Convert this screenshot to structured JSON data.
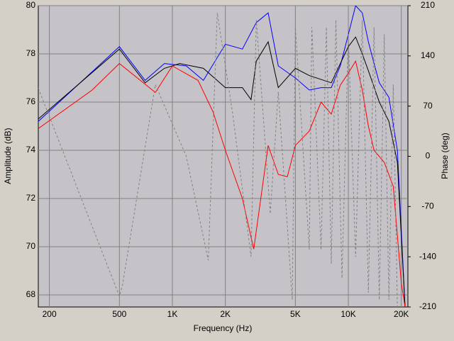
{
  "chart_data": {
    "type": "line",
    "x_label": "Frequency (Hz)",
    "y_label": "Amplitude (dB)",
    "y2_label": "Phase (deg)",
    "xscale": "log",
    "xlim": [
      173,
      21800
    ],
    "ylim": [
      67.5,
      80
    ],
    "y2lim": [
      -210,
      210
    ],
    "xticks": [
      200,
      500,
      {
        "value": 1000,
        "label": "1K"
      },
      {
        "value": 2000,
        "label": "2K"
      },
      {
        "value": 5000,
        "label": "5K"
      },
      {
        "value": 10000,
        "label": "10K"
      },
      {
        "value": 20000,
        "label": "20K"
      }
    ],
    "yticks": [
      68,
      70,
      72,
      74,
      76,
      78,
      80
    ],
    "y2ticks": [
      -210,
      -140,
      -70,
      0,
      70,
      140,
      210
    ],
    "grid": true,
    "series": [
      {
        "color": "#0000ff",
        "x": [
          173,
          500,
          700,
          900,
          1200,
          1500,
          2000,
          2500,
          3000,
          3500,
          4000,
          5000,
          6000,
          7000,
          8000,
          9000,
          10000,
          11000,
          12000,
          13000,
          14000,
          15000,
          17000,
          19000,
          21000
        ],
        "values": [
          75.2,
          78.3,
          76.9,
          77.6,
          77.5,
          76.9,
          78.4,
          78.2,
          79.3,
          79.7,
          77.5,
          77.0,
          76.5,
          76.6,
          76.6,
          77.5,
          78.8,
          80.0,
          79.7,
          78.5,
          77.6,
          76.8,
          76.2,
          74.0,
          67.5
        ]
      },
      {
        "color": "#000000",
        "x": [
          173,
          500,
          700,
          900,
          1100,
          1500,
          2000,
          2500,
          2800,
          3000,
          3500,
          4000,
          5000,
          6000,
          8000,
          10000,
          11000,
          12000,
          13000,
          15000,
          17000,
          19000,
          21000
        ],
        "values": [
          75.3,
          78.2,
          76.8,
          77.4,
          77.6,
          77.4,
          76.6,
          76.6,
          76.1,
          77.7,
          78.5,
          76.6,
          77.4,
          77.1,
          76.8,
          78.3,
          78.7,
          78.0,
          77.3,
          76.0,
          75.2,
          73.5,
          67.5
        ]
      },
      {
        "color": "#ff0000",
        "x": [
          173,
          350,
          500,
          800,
          1000,
          1400,
          1700,
          2000,
          2500,
          2900,
          3500,
          4000,
          4500,
          5000,
          6000,
          7000,
          8000,
          9000,
          10000,
          11000,
          12000,
          13000,
          14000,
          16000,
          18000,
          20000,
          21000
        ],
        "values": [
          74.9,
          76.5,
          77.6,
          76.4,
          77.5,
          76.9,
          75.6,
          74.0,
          72.0,
          69.9,
          74.2,
          73.0,
          72.9,
          74.2,
          74.8,
          76.0,
          75.5,
          76.7,
          77.2,
          77.7,
          76.5,
          75.0,
          74.0,
          73.5,
          72.5,
          68.5,
          67.5
        ]
      },
      {
        "color": "#808080",
        "axis": "y2",
        "dashed": true,
        "x": [
          173,
          500,
          520,
          800,
          1200,
          1600,
          1800,
          2200,
          2800,
          3000,
          3600,
          4000,
          4800,
          5000,
          6000,
          6200,
          7000,
          7500,
          8000,
          8500,
          9200,
          10000,
          11000,
          12000,
          13000,
          14000,
          15000,
          16000,
          17000,
          18000,
          19000
        ],
        "values": [
          95,
          -195,
          -180,
          100,
          0,
          -145,
          200,
          60,
          -140,
          190,
          -80,
          90,
          -200,
          180,
          -130,
          180,
          -130,
          180,
          -150,
          190,
          -170,
          170,
          -140,
          190,
          -190,
          180,
          -200,
          170,
          -200,
          100,
          -210
        ]
      }
    ]
  }
}
